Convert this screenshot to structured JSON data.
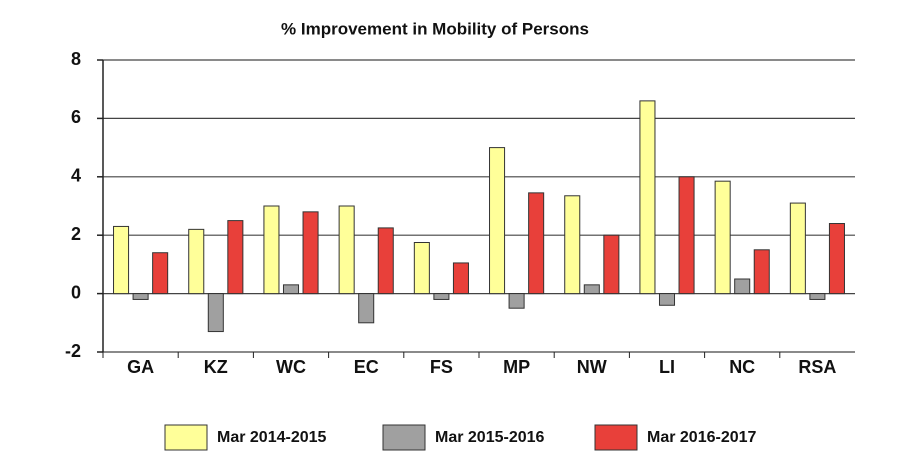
{
  "chart_data": {
    "type": "bar",
    "title": "% Improvement in Mobility of Persons",
    "categories": [
      "GA",
      "KZ",
      "WC",
      "EC",
      "FS",
      "MP",
      "NW",
      "LI",
      "NC",
      "RSA"
    ],
    "series": [
      {
        "name": "Mar 2014-2015",
        "color": "#ffff99",
        "values": [
          2.3,
          2.2,
          3.0,
          3.0,
          1.75,
          5.0,
          3.35,
          6.6,
          3.85,
          3.1
        ]
      },
      {
        "name": "Mar 2015-2016",
        "color": "#a0a0a0",
        "values": [
          -0.2,
          -1.3,
          0.3,
          -1.0,
          -0.2,
          -0.5,
          0.3,
          -0.4,
          0.5,
          -0.2
        ]
      },
      {
        "name": "Mar 2016-2017",
        "color": "#e8403a",
        "values": [
          1.4,
          2.5,
          2.8,
          2.25,
          1.05,
          3.45,
          2.0,
          4.0,
          1.5,
          2.4
        ]
      }
    ],
    "ylim": [
      -2,
      8
    ],
    "yticks": [
      -2,
      0,
      2,
      4,
      6,
      8
    ],
    "grid": true,
    "legend": "bottom"
  }
}
